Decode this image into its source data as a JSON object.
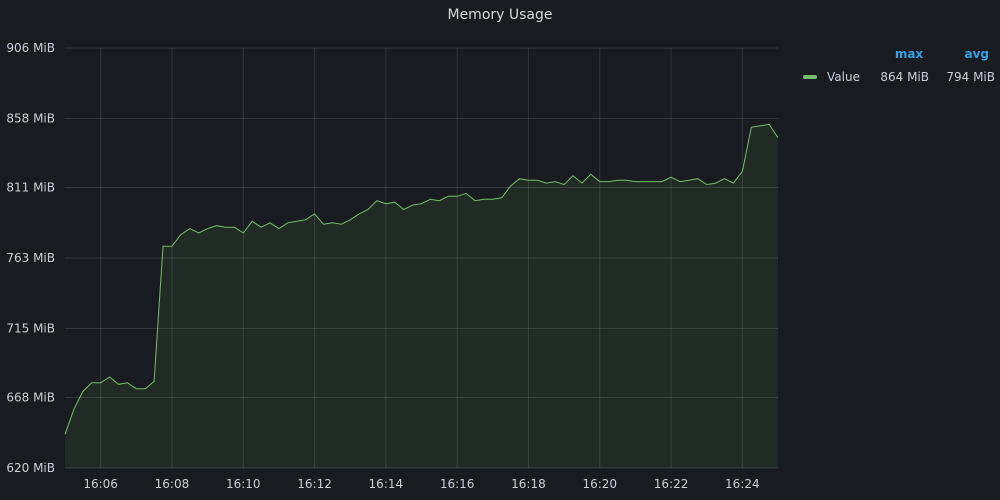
{
  "panel": {
    "title": "Memory Usage"
  },
  "legend": {
    "headers": {
      "max": "max",
      "avg": "avg"
    },
    "rows": [
      {
        "name": "Value",
        "max": "864 MiB",
        "avg": "794 MiB",
        "color": "#73bf69"
      }
    ]
  },
  "chart_data": {
    "type": "area",
    "title": "Memory Usage",
    "xlabel": "",
    "ylabel": "",
    "x_ticks": [
      "16:06",
      "16:08",
      "16:10",
      "16:12",
      "16:14",
      "16:16",
      "16:18",
      "16:20",
      "16:22",
      "16:24"
    ],
    "y_ticks": [
      "620 MiB",
      "668 MiB",
      "715 MiB",
      "763 MiB",
      "811 MiB",
      "858 MiB",
      "906 MiB"
    ],
    "ylim": [
      620,
      906
    ],
    "xlim": [
      "16:05:00",
      "16:25:00"
    ],
    "grid": true,
    "legend_position": "right",
    "series": [
      {
        "name": "Value",
        "color": "#73bf69",
        "x": [
          "16:05:00",
          "16:05:15",
          "16:05:30",
          "16:05:45",
          "16:06:00",
          "16:06:15",
          "16:06:30",
          "16:06:45",
          "16:07:00",
          "16:07:15",
          "16:07:30",
          "16:07:45",
          "16:08:00",
          "16:08:15",
          "16:08:30",
          "16:08:45",
          "16:09:00",
          "16:09:15",
          "16:09:30",
          "16:09:45",
          "16:10:00",
          "16:10:15",
          "16:10:30",
          "16:10:45",
          "16:11:00",
          "16:11:15",
          "16:11:30",
          "16:11:45",
          "16:12:00",
          "16:12:15",
          "16:12:30",
          "16:12:45",
          "16:13:00",
          "16:13:15",
          "16:13:30",
          "16:13:45",
          "16:14:00",
          "16:14:15",
          "16:14:30",
          "16:14:45",
          "16:15:00",
          "16:15:15",
          "16:15:30",
          "16:15:45",
          "16:16:00",
          "16:16:15",
          "16:16:30",
          "16:16:45",
          "16:17:00",
          "16:17:15",
          "16:17:30",
          "16:17:45",
          "16:18:00",
          "16:18:15",
          "16:18:30",
          "16:18:45",
          "16:19:00",
          "16:19:15",
          "16:19:30",
          "16:19:45",
          "16:20:00",
          "16:20:15",
          "16:20:30",
          "16:20:45",
          "16:21:00",
          "16:21:15",
          "16:21:30",
          "16:21:45",
          "16:22:00",
          "16:22:15",
          "16:22:30",
          "16:22:45",
          "16:23:00",
          "16:23:15",
          "16:23:30",
          "16:23:45",
          "16:24:00",
          "16:24:15",
          "16:24:30",
          "16:24:45",
          "16:25:00"
        ],
        "values": [
          643,
          660,
          672,
          678,
          678,
          682,
          677,
          678,
          674,
          674,
          679,
          771,
          771,
          779,
          783,
          780,
          783,
          785,
          784,
          784,
          780,
          788,
          784,
          787,
          783,
          787,
          788,
          789,
          793,
          786,
          787,
          786,
          789,
          793,
          796,
          802,
          800,
          801,
          796,
          799,
          800,
          803,
          802,
          805,
          805,
          807,
          802,
          803,
          803,
          804,
          812,
          817,
          816,
          816,
          814,
          815,
          813,
          819,
          814,
          820,
          815,
          815,
          816,
          816,
          815,
          815,
          815,
          815,
          818,
          815,
          816,
          817,
          813,
          814,
          817,
          814,
          822,
          852,
          853,
          854,
          845
        ]
      }
    ]
  }
}
